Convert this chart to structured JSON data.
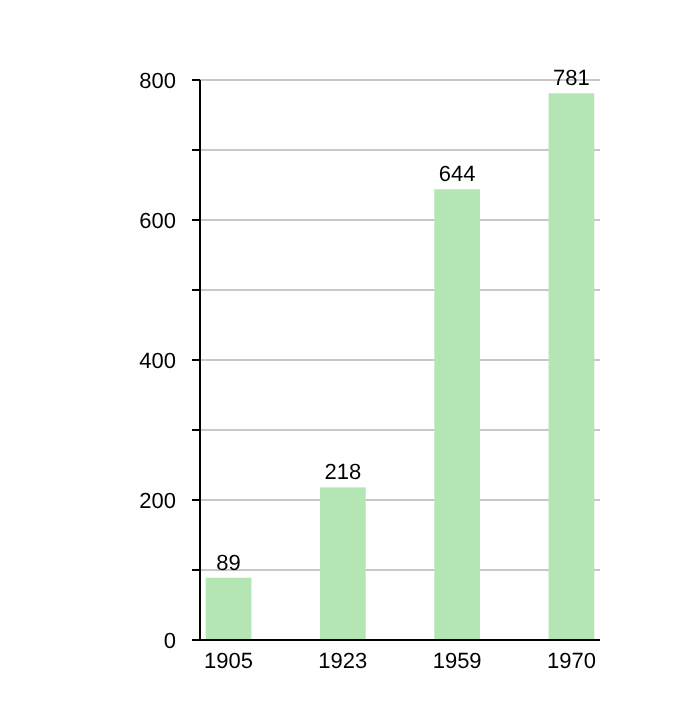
{
  "chart_data": {
    "type": "bar",
    "categories": [
      "1905",
      "1923",
      "1959",
      "1970"
    ],
    "values": [
      89,
      218,
      644,
      781
    ],
    "color": "#b3e6b3",
    "ylim": [
      0,
      800
    ],
    "yticks": [
      0,
      {
        "value": 100,
        "label": null
      },
      200,
      {
        "value": 300,
        "label": null
      },
      400,
      {
        "value": 500,
        "label": null
      },
      600,
      {
        "value": 700,
        "label": null
      },
      800
    ],
    "grid": true,
    "data_labels": true
  }
}
